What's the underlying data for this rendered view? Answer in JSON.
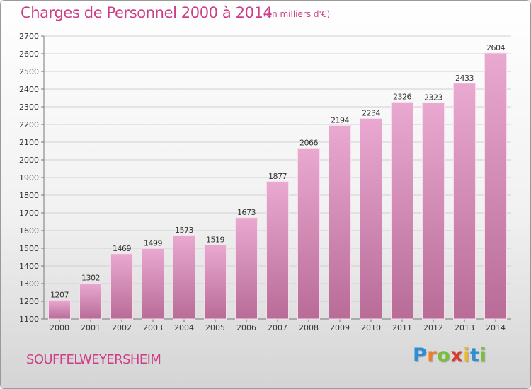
{
  "header": {
    "title": "Charges de Personnel 2000 à 2014",
    "subtitle": "(en milliers d'€)"
  },
  "footer": {
    "commune": "SOUFFELWEYERSHEIM",
    "logo_letters": [
      "P",
      "r",
      "o",
      "x",
      "i",
      "t",
      "i"
    ],
    "logo_colors": [
      "#2f8fd6",
      "#e8812d",
      "#7abf3a",
      "#d9392f",
      "#e8b92d",
      "#2f8fd6",
      "#7abf3a"
    ]
  },
  "colors": {
    "accent": "#cc3f86",
    "bar_top": "#e9a9d0",
    "bar_bottom": "#b86c97",
    "bar_edge": "#f7dcec"
  },
  "chart_data": {
    "type": "bar",
    "title": "Charges de Personnel 2000 à 2014",
    "ylabel": "(en milliers d'€)",
    "xlabel": "",
    "categories": [
      "2000",
      "2001",
      "2002",
      "2003",
      "2004",
      "2005",
      "2006",
      "2007",
      "2008",
      "2009",
      "2010",
      "2011",
      "2012",
      "2013",
      "2014"
    ],
    "values": [
      1207,
      1302,
      1469,
      1499,
      1573,
      1519,
      1673,
      1877,
      2066,
      2194,
      2234,
      2326,
      2323,
      2433,
      2604
    ],
    "ylim": [
      1100,
      2700
    ],
    "yticks": [
      1100,
      1200,
      1300,
      1400,
      1500,
      1600,
      1700,
      1800,
      1900,
      2000,
      2100,
      2200,
      2300,
      2400,
      2500,
      2600,
      2700
    ],
    "grid": true,
    "data_labels": true
  }
}
